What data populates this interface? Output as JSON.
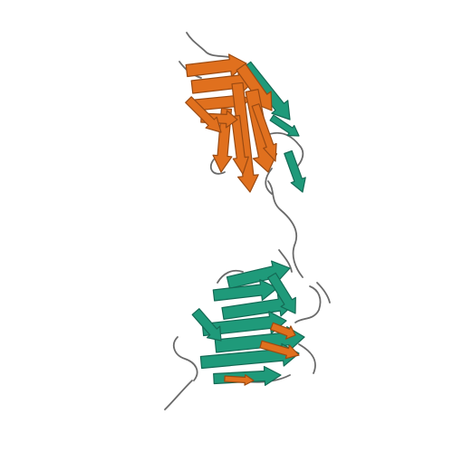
{
  "image": {
    "background": "#ffffff",
    "subject": "protein-ribbon-structure",
    "colors": {
      "chain_a": "#e0701e",
      "chain_a_dark": "#9a4a12",
      "chain_b": "#1f9a7a",
      "chain_b_dark": "#146a55",
      "coil": "#6a6a6a"
    }
  }
}
